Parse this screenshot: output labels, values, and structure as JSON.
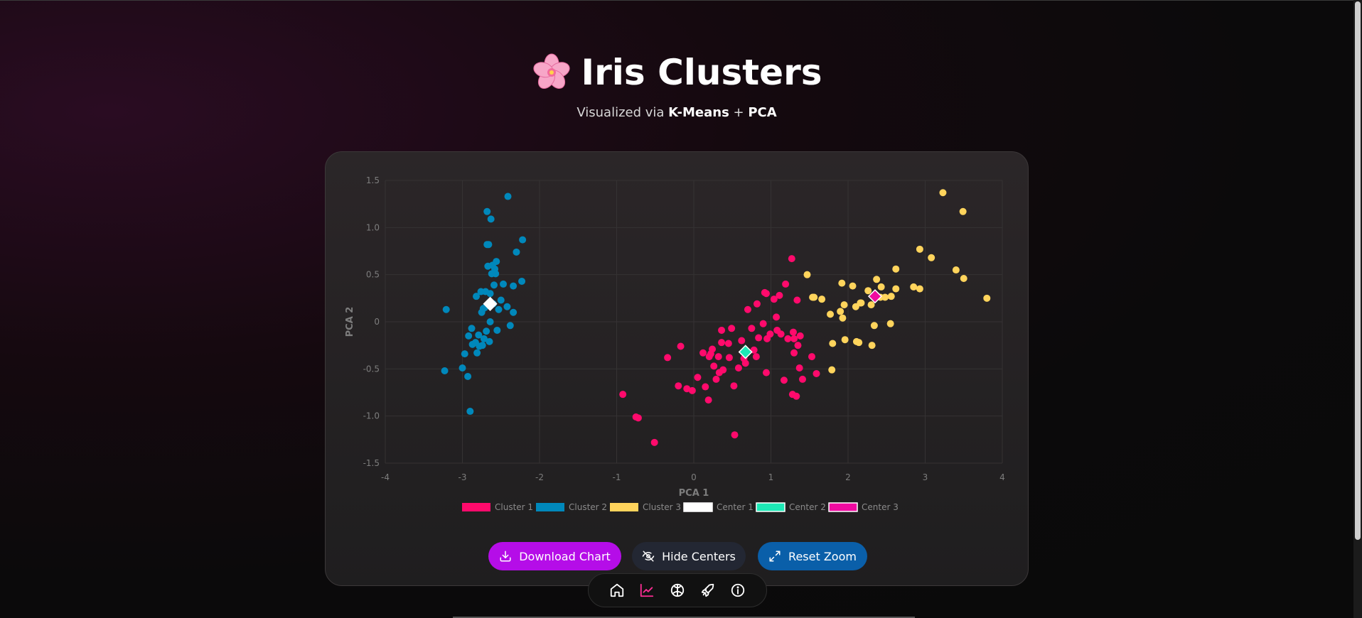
{
  "header": {
    "title": "Iris Clusters",
    "subtitle_prefix": "Visualized via ",
    "subtitle_method1": "K-Means",
    "subtitle_join": " + ",
    "subtitle_method2": "PCA"
  },
  "buttons": {
    "download_label": "Download Chart",
    "hide_centers_label": "Hide Centers",
    "reset_zoom_label": "Reset Zoom"
  },
  "dock": {
    "active": "chart",
    "items": [
      "home-icon",
      "chart-icon",
      "brain-icon",
      "rocket-icon",
      "info-icon"
    ]
  },
  "colors": {
    "cluster1": "#ff0a6c",
    "cluster2": "#0088bb",
    "cluster3": "#ffd45c",
    "center1": "#ffffff",
    "center2": "#1de9b6",
    "center3": "#f00aa0",
    "download_btn": "#b50de8",
    "reset_btn": "#0a5fa9",
    "dock_active": "#ff2d95"
  },
  "chart_data": {
    "type": "scatter",
    "xlabel": "PCA 1",
    "ylabel": "PCA 2",
    "xlim": [
      -4,
      4
    ],
    "ylim": [
      -1.5,
      1.5
    ],
    "xticks": [
      -4,
      -3,
      -2,
      -1,
      0,
      1,
      2,
      3,
      4
    ],
    "yticks": [
      1.5,
      1.0,
      0.5,
      0,
      -0.5,
      -1.0,
      -1.5
    ],
    "xtick_labels": [
      "-4",
      "-3",
      "-2",
      "-1",
      "0",
      "1",
      "2",
      "3",
      "4"
    ],
    "ytick_labels": [
      "1.5",
      "1.0",
      "0.5",
      "0",
      "-0.5",
      "-1.0",
      "-1.5"
    ],
    "grid": true,
    "legend_position": "bottom",
    "series": [
      {
        "name": "Cluster 1",
        "color": "#ff0a6c",
        "marker": "circle",
        "points": [
          [
            -0.92,
            -0.77
          ],
          [
            -0.75,
            -1.01
          ],
          [
            -0.72,
            -1.02
          ],
          [
            -0.51,
            -1.28
          ],
          [
            -0.34,
            -0.38
          ],
          [
            -0.17,
            -0.26
          ],
          [
            -0.2,
            -0.68
          ],
          [
            -0.09,
            -0.71
          ],
          [
            -0.02,
            -0.73
          ],
          [
            0.05,
            -0.59
          ],
          [
            0.12,
            -0.33
          ],
          [
            0.15,
            -0.69
          ],
          [
            0.19,
            -0.83
          ],
          [
            0.2,
            -0.37
          ],
          [
            0.22,
            -0.34
          ],
          [
            0.24,
            -0.29
          ],
          [
            0.26,
            -0.47
          ],
          [
            0.29,
            -0.61
          ],
          [
            0.32,
            -0.37
          ],
          [
            0.33,
            -0.54
          ],
          [
            0.36,
            -0.22
          ],
          [
            0.38,
            -0.51
          ],
          [
            0.36,
            -0.09
          ],
          [
            0.45,
            -0.23
          ],
          [
            0.46,
            -0.38
          ],
          [
            0.49,
            -0.07
          ],
          [
            0.52,
            -0.68
          ],
          [
            0.53,
            -1.2
          ],
          [
            0.58,
            -0.49
          ],
          [
            0.62,
            -0.2
          ],
          [
            0.65,
            -0.39
          ],
          [
            0.67,
            -0.44
          ],
          [
            0.7,
            0.13
          ],
          [
            0.75,
            -0.07
          ],
          [
            0.78,
            -0.3
          ],
          [
            0.81,
            -0.37
          ],
          [
            0.82,
            0.19
          ],
          [
            0.84,
            -0.17
          ],
          [
            0.9,
            -0.02
          ],
          [
            0.92,
            0.31
          ],
          [
            0.94,
            0.3
          ],
          [
            0.94,
            -0.54
          ],
          [
            0.95,
            -0.18
          ],
          [
            0.99,
            -0.13
          ],
          [
            1.04,
            0.24
          ],
          [
            1.07,
            0.05
          ],
          [
            1.08,
            -0.09
          ],
          [
            1.11,
            0.28
          ],
          [
            1.13,
            -0.13
          ],
          [
            1.17,
            -0.62
          ],
          [
            1.19,
            0.4
          ],
          [
            1.22,
            -0.18
          ],
          [
            1.27,
            0.67
          ],
          [
            1.28,
            -0.77
          ],
          [
            1.29,
            -0.11
          ],
          [
            1.3,
            -0.18
          ],
          [
            1.3,
            -0.33
          ],
          [
            1.33,
            -0.79
          ],
          [
            1.35,
            -0.25
          ],
          [
            1.37,
            -0.49
          ],
          [
            1.38,
            -0.15
          ],
          [
            1.41,
            -0.61
          ],
          [
            1.34,
            0.23
          ],
          [
            1.53,
            -0.37
          ],
          [
            1.59,
            -0.55
          ]
        ]
      },
      {
        "name": "Cluster 2",
        "color": "#0088bb",
        "marker": "circle",
        "points": [
          [
            -3.21,
            0.13
          ],
          [
            -3.23,
            -0.52
          ],
          [
            -3.0,
            -0.49
          ],
          [
            -2.93,
            -0.58
          ],
          [
            -2.9,
            -0.95
          ],
          [
            -2.97,
            -0.34
          ],
          [
            -2.92,
            -0.15
          ],
          [
            -2.88,
            -0.07
          ],
          [
            -2.87,
            -0.24
          ],
          [
            -2.83,
            -0.22
          ],
          [
            -2.82,
            0.27
          ],
          [
            -2.81,
            -0.33
          ],
          [
            -2.79,
            -0.14
          ],
          [
            -2.78,
            -0.26
          ],
          [
            -2.76,
            0.32
          ],
          [
            -2.75,
            0.1
          ],
          [
            -2.74,
            -0.25
          ],
          [
            -2.73,
            0.14
          ],
          [
            -2.72,
            -0.18
          ],
          [
            -2.71,
            0.15
          ],
          [
            -2.7,
            0.32
          ],
          [
            -2.69,
            -0.1
          ],
          [
            -2.68,
            0.82
          ],
          [
            -2.67,
            0.59
          ],
          [
            -2.66,
            0.82
          ],
          [
            -2.65,
            -0.21
          ],
          [
            -2.64,
            0.3
          ],
          [
            -2.64,
            0.0
          ],
          [
            -2.62,
            0.51
          ],
          [
            -2.61,
            0.6
          ],
          [
            -2.6,
            0.19
          ],
          [
            -2.59,
            0.39
          ],
          [
            -2.58,
            0.56
          ],
          [
            -2.57,
            0.51
          ],
          [
            -2.56,
            0.64
          ],
          [
            -2.55,
            -0.09
          ],
          [
            -2.53,
            0.13
          ],
          [
            -2.5,
            0.23
          ],
          [
            -2.47,
            0.4
          ],
          [
            -2.42,
            0.16
          ],
          [
            -2.38,
            -0.04
          ],
          [
            -2.34,
            0.38
          ],
          [
            -2.34,
            0.1
          ],
          [
            -2.3,
            0.74
          ],
          [
            -2.23,
            0.43
          ],
          [
            -2.22,
            0.87
          ],
          [
            -2.41,
            1.33
          ],
          [
            -2.68,
            1.17
          ],
          [
            -2.63,
            1.09
          ]
        ]
      },
      {
        "name": "Cluster 3",
        "color": "#ffd45c",
        "marker": "circle",
        "points": [
          [
            1.47,
            0.5
          ],
          [
            1.56,
            0.26
          ],
          [
            1.66,
            0.24
          ],
          [
            1.77,
            0.08
          ],
          [
            1.79,
            -0.51
          ],
          [
            1.8,
            -0.23
          ],
          [
            1.9,
            0.11
          ],
          [
            1.92,
            0.41
          ],
          [
            1.93,
            0.04
          ],
          [
            1.95,
            0.18
          ],
          [
            1.96,
            -0.19
          ],
          [
            2.06,
            0.38
          ],
          [
            2.1,
            0.16
          ],
          [
            2.11,
            -0.21
          ],
          [
            2.14,
            -0.22
          ],
          [
            2.17,
            0.2
          ],
          [
            2.26,
            0.33
          ],
          [
            2.3,
            0.18
          ],
          [
            2.31,
            -0.25
          ],
          [
            2.34,
            -0.04
          ],
          [
            2.37,
            0.45
          ],
          [
            2.42,
            0.26
          ],
          [
            2.43,
            0.37
          ],
          [
            2.48,
            0.26
          ],
          [
            2.55,
            -0.02
          ],
          [
            2.56,
            0.27
          ],
          [
            2.62,
            0.35
          ],
          [
            2.62,
            0.56
          ],
          [
            2.85,
            0.37
          ],
          [
            2.93,
            0.35
          ],
          [
            2.93,
            0.77
          ],
          [
            3.08,
            0.68
          ],
          [
            3.23,
            1.37
          ],
          [
            3.4,
            0.55
          ],
          [
            3.49,
            1.17
          ],
          [
            3.5,
            0.46
          ],
          [
            3.8,
            0.25
          ],
          [
            1.54,
            0.26
          ],
          [
            2.16,
            0.2
          ]
        ]
      },
      {
        "name": "Center 1",
        "color": "#ffffff",
        "marker": "diamond",
        "points": [
          [
            -2.64,
            0.19
          ]
        ]
      },
      {
        "name": "Center 2",
        "color": "#1de9b6",
        "marker": "diamond",
        "points": [
          [
            0.67,
            -0.32
          ]
        ]
      },
      {
        "name": "Center 3",
        "color": "#f00aa0",
        "marker": "diamond",
        "points": [
          [
            2.35,
            0.27
          ]
        ]
      }
    ]
  }
}
